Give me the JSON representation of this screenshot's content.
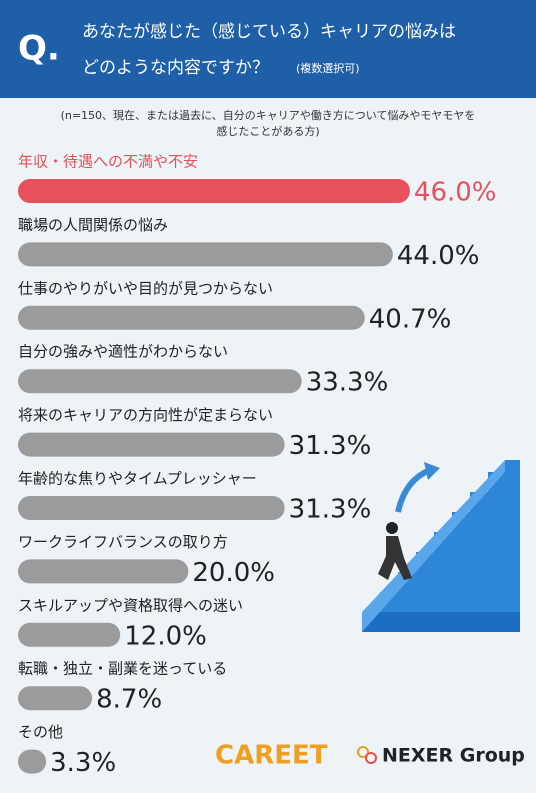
{
  "header": {
    "mark": "Q.",
    "title_lines": [
      "あなたが感じた（感じている）キャリアの悩みは",
      "どのような内容ですか？"
    ],
    "note": "(複数選択可)"
  },
  "chart_data": {
    "type": "bar",
    "subtitle_lines": [
      "(n=150、現在、または過去に、自分のキャリアや働き方について悩みやモヤモヤを",
      "感じたことがある方)"
    ],
    "categories": [
      "年収・待遇への不満や不安",
      "職場の人間関係の悩み",
      "仕事のやりがいや目的が見つからない",
      "自分の強みや適性がわからない",
      "将来のキャリアの方向性が定まらない",
      "年齢的な焦りやタイムプレッシャー",
      "ワークライフバランスの取り方",
      "スキルアップや資格取得への迷い",
      "転職・独立・副業を迷っている",
      "その他"
    ],
    "values": [
      46.0,
      44.0,
      40.7,
      33.3,
      31.3,
      31.3,
      20.0,
      12.0,
      8.7,
      3.3
    ],
    "value_labels": [
      "46.0%",
      "44.0%",
      "40.7%",
      "33.3%",
      "31.3%",
      "31.3%",
      "20.0%",
      "12.0%",
      "8.7%",
      "3.3%"
    ],
    "color": "#9b9b9b",
    "highlight": {
      "index": 0,
      "color": "#e8505b"
    }
  },
  "logos": [
    "CAREET",
    "NEXER Group"
  ]
}
